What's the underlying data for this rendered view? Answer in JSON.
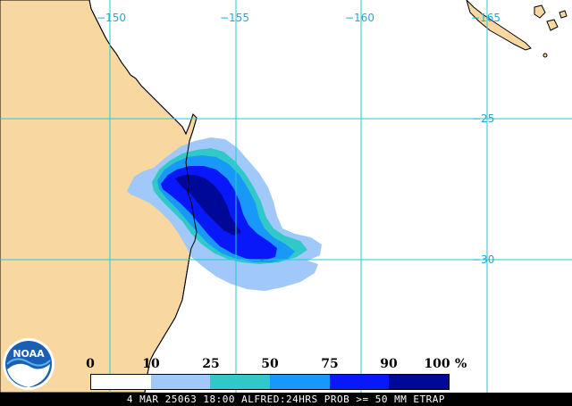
{
  "map": {
    "land_color": "#f8d8a0",
    "ocean_color": "#ffffff",
    "coastline_color": "#000000",
    "grid_color": "#22cccc",
    "label_color": "#22aadd",
    "longitude_labels": [
      "−150",
      "−155",
      "−160",
      "−165"
    ],
    "latitude_labels": [
      "−25",
      "−30"
    ],
    "probability_field": [
      {
        "bin": "10-25",
        "color": "#a0c8f8"
      },
      {
        "bin": "25-50",
        "color": "#30c8c8"
      },
      {
        "bin": "50-75",
        "color": "#1898f8"
      },
      {
        "bin": "75-90",
        "color": "#0818f8"
      },
      {
        "bin": "90-100",
        "color": "#000898"
      }
    ]
  },
  "legend": {
    "tick_labels": [
      "0",
      "10",
      "25",
      "50",
      "75",
      "90",
      "100"
    ],
    "unit": "%",
    "bins": [
      {
        "from": 0,
        "to": 10,
        "color": "#ffffff"
      },
      {
        "from": 10,
        "to": 25,
        "color": "#a0c8f8"
      },
      {
        "from": 25,
        "to": 50,
        "color": "#30c8c8"
      },
      {
        "from": 50,
        "to": 75,
        "color": "#1898f8"
      },
      {
        "from": 75,
        "to": 90,
        "color": "#0818f8"
      },
      {
        "from": 90,
        "to": 100,
        "color": "#000898"
      }
    ]
  },
  "footer": {
    "caption": "4 MAR 25063 18:00 ALFRED:24HRS PROB >= 50 MM ETRAP"
  },
  "logo": {
    "text": "NOAA",
    "icon": "noaa-logo-icon"
  }
}
